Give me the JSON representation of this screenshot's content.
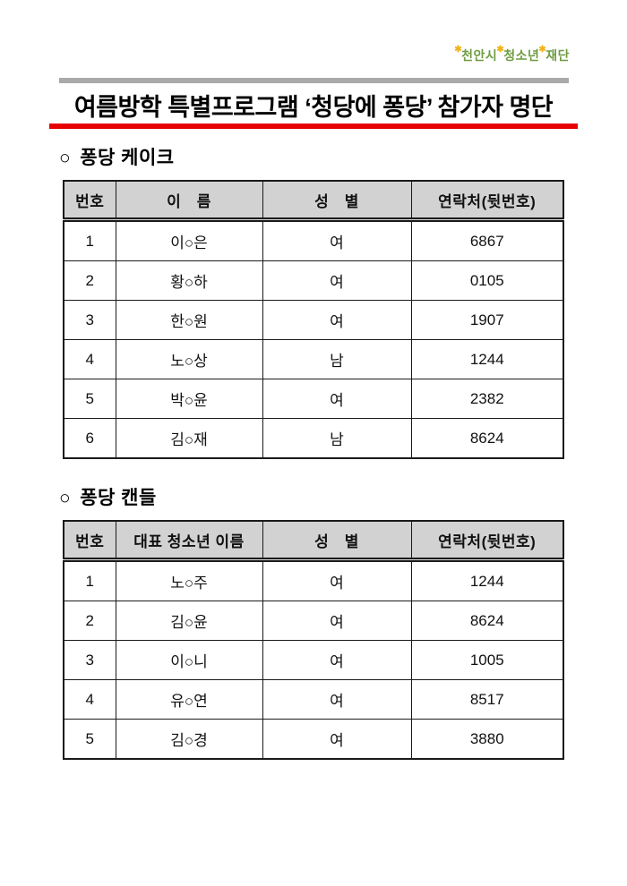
{
  "document": {
    "logo": {
      "star": "✱",
      "segments": [
        "천안시",
        "청소년",
        "재단"
      ]
    },
    "title": "여름방학 특별프로그램  ‘청당에 퐁당’  참가자 명단"
  },
  "colors": {
    "top_bar": "#a9a9a9",
    "title_underline": "#e60000",
    "table_header_bg": "#d2d2d2",
    "logo_green": "#6f9c42",
    "logo_star_yellow": "#f2b218"
  },
  "sections": [
    {
      "bullet": "○",
      "title": "퐁당 케이크",
      "table": {
        "headers": [
          "번호",
          "이　름",
          "성　별",
          "연락처(뒷번호)"
        ],
        "rows": [
          [
            "1",
            "이○은",
            "여",
            "6867"
          ],
          [
            "2",
            "황○하",
            "여",
            "0105"
          ],
          [
            "3",
            "한○원",
            "여",
            "1907"
          ],
          [
            "4",
            "노○상",
            "남",
            "1244"
          ],
          [
            "5",
            "박○윤",
            "여",
            "2382"
          ],
          [
            "6",
            "김○재",
            "남",
            "8624"
          ]
        ]
      }
    },
    {
      "bullet": "○",
      "title": "퐁당 캔들",
      "table": {
        "headers": [
          "번호",
          "대표 청소년 이름",
          "성　별",
          "연락처(뒷번호)"
        ],
        "rows": [
          [
            "1",
            "노○주",
            "여",
            "1244"
          ],
          [
            "2",
            "김○윤",
            "여",
            "8624"
          ],
          [
            "3",
            "이○니",
            "여",
            "1005"
          ],
          [
            "4",
            "유○연",
            "여",
            "8517"
          ],
          [
            "5",
            "김○경",
            "여",
            "3880"
          ]
        ]
      }
    }
  ]
}
